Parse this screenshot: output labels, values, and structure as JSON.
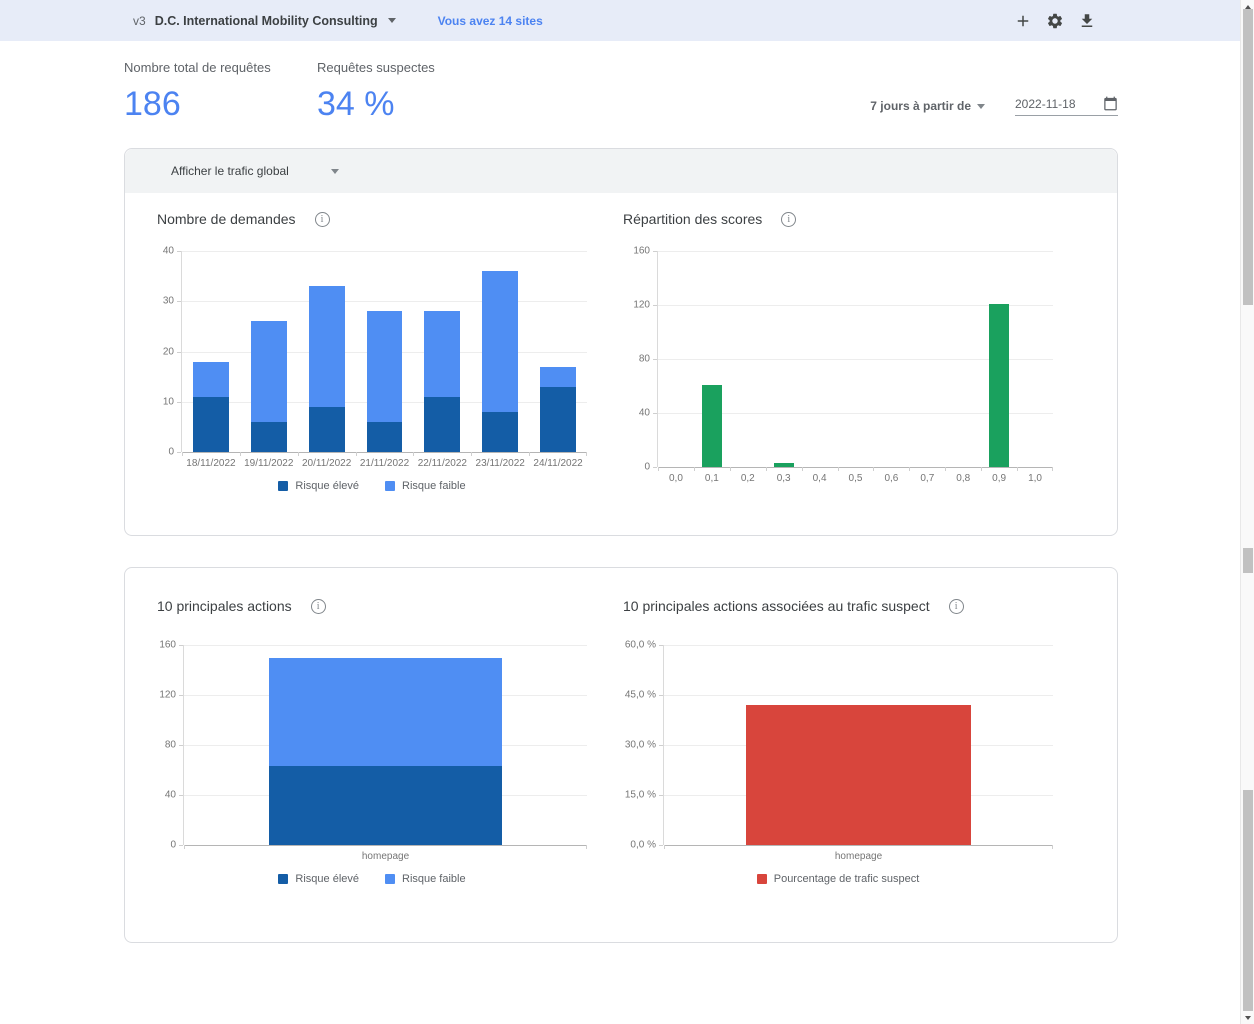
{
  "topbar": {
    "version_badge": "v3",
    "site_selector": "D.C. International Mobility Consulting",
    "sites_link": "Vous avez 14 sites",
    "icons": [
      "add-icon",
      "settings-icon",
      "download-icon"
    ]
  },
  "summary": {
    "stats": [
      {
        "label": "Nombre total de requêtes",
        "value": "186"
      },
      {
        "label": "Requêtes suspectes",
        "value": "34 %"
      }
    ],
    "period_selector": "7 jours à partir de",
    "date_value": "2022-11-18"
  },
  "filter_bar": {
    "label": "Afficher le trafic global"
  },
  "colors": {
    "accent_blue": "#4c83f1",
    "risk_high_blue": "#145da6",
    "risk_low_blue": "#4f8ef3",
    "score_green": "#1aa15e",
    "suspect_red": "#d8453c",
    "topbar_bg": "#e7ecf8"
  },
  "chart_data": [
    {
      "type": "bar",
      "stacked": true,
      "title": "Nombre de demandes",
      "categories": [
        "18/11/2022",
        "19/11/2022",
        "20/11/2022",
        "21/11/2022",
        "22/11/2022",
        "23/11/2022",
        "24/11/2022"
      ],
      "series": [
        {
          "name": "Risque élevé",
          "color": "#145da6",
          "values": [
            11,
            6,
            9,
            6,
            11,
            8,
            13
          ]
        },
        {
          "name": "Risque faible",
          "color": "#4f8ef3",
          "values": [
            7,
            20,
            24,
            22,
            17,
            28,
            4
          ]
        }
      ],
      "ylim": [
        0,
        40
      ],
      "yticks": [
        0,
        10,
        20,
        30,
        40
      ],
      "legend": true,
      "grid": true,
      "legend_position": "bottom",
      "bar_ratio": 0.62
    },
    {
      "type": "bar",
      "stacked": false,
      "title": "Répartition des scores",
      "categories": [
        "0,0",
        "0,1",
        "0,2",
        "0,3",
        "0,4",
        "0,5",
        "0,6",
        "0,7",
        "0,8",
        "0,9",
        "1,0"
      ],
      "series": [
        {
          "name": "",
          "color": "#1aa15e",
          "values": [
            0,
            61,
            0,
            3,
            0,
            0,
            0,
            0,
            0,
            121,
            0
          ]
        }
      ],
      "ylim": [
        0,
        160
      ],
      "yticks": [
        0,
        40,
        80,
        120,
        160
      ],
      "legend": false,
      "grid": true,
      "bar_ratio": 0.55
    },
    {
      "type": "bar",
      "stacked": true,
      "title": "10 principales actions",
      "categories": [
        "homepage"
      ],
      "series": [
        {
          "name": "Risque élevé",
          "color": "#145da6",
          "values": [
            63
          ]
        },
        {
          "name": "Risque faible",
          "color": "#4f8ef3",
          "values": [
            87
          ]
        }
      ],
      "ylim": [
        0,
        160
      ],
      "yticks": [
        0,
        40,
        80,
        120,
        160
      ],
      "legend": true,
      "grid": true,
      "legend_position": "bottom",
      "bar_ratio": 0.58
    },
    {
      "type": "bar",
      "stacked": false,
      "title": "10 principales actions associées au trafic suspect",
      "categories": [
        "homepage"
      ],
      "series": [
        {
          "name": "Pourcentage de trafic suspect",
          "color": "#d8453c",
          "values": [
            42
          ]
        }
      ],
      "ylim": [
        0,
        60
      ],
      "yticks": [
        0,
        15,
        30,
        45,
        60
      ],
      "ytick_labels": [
        "0,0 %",
        "15,0 %",
        "30,0 %",
        "45,0 %",
        "60,0 %"
      ],
      "legend": true,
      "grid": true,
      "legend_position": "bottom",
      "bar_ratio": 0.58
    }
  ]
}
